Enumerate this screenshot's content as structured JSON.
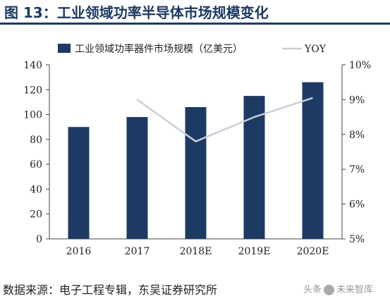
{
  "header": {
    "title": "图 13：工业领域功率半导体市场规模变化"
  },
  "footer": {
    "source": "数据来源：电子工程专辑，东吴证券研究所",
    "watermark_left": "头条",
    "watermark_right": "未来智库"
  },
  "colors": {
    "bar": "#1c3a63",
    "line": "#c9ced6",
    "title": "#1c3a63"
  },
  "chart_data": {
    "type": "bar",
    "categories": [
      "2016",
      "2017",
      "2018E",
      "2019E",
      "2020E"
    ],
    "series": [
      {
        "name": "工业领域功率器件市场规模（亿美元）",
        "type": "bar",
        "axis": "left",
        "values": [
          90,
          98,
          106,
          115,
          126
        ]
      },
      {
        "name": "YOY",
        "type": "line",
        "axis": "right",
        "values": [
          null,
          9.0,
          7.8,
          8.5,
          9.05
        ]
      }
    ],
    "ylim": [
      0,
      140
    ],
    "yticks": [
      0,
      20,
      40,
      60,
      80,
      100,
      120,
      140
    ],
    "y2lim": [
      5,
      10
    ],
    "y2ticks": [
      "5%",
      "6%",
      "7%",
      "8%",
      "9%",
      "10%"
    ],
    "legend": [
      "工业领域功率器件市场规模（亿美元）",
      "YOY"
    ],
    "legend_position": "top",
    "grid": false
  }
}
